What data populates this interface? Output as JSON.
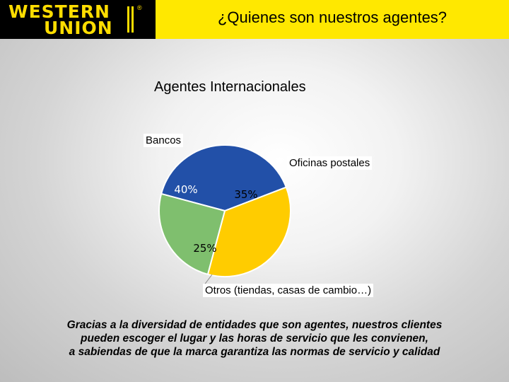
{
  "header": {
    "logo_line1": "WESTERN",
    "logo_line2": "UNION",
    "logo_reg": "®",
    "title": "¿Quienes son nuestros agentes?"
  },
  "colors": {
    "header_bg": "#ffe800",
    "logo_bg": "#000000",
    "logo_text": "#ffdd00",
    "bancos": "#2250a8",
    "oficinas": "#ffcc00",
    "otros": "#7fbf6e"
  },
  "chart_data": {
    "type": "pie",
    "title": "Agentes Internacionales",
    "slices": [
      {
        "label": "Bancos",
        "value": 40,
        "value_label": "40%"
      },
      {
        "label": "Oficinas postales",
        "value": 35,
        "value_label": "35%"
      },
      {
        "label": "Otros (tiendas, casas de cambio…)",
        "value": 25,
        "value_label": "25%"
      }
    ]
  },
  "footnote": {
    "line1": "Gracias a la diversidad de entidades que son agentes, nuestros clientes",
    "line2": "pueden escoger el lugar y las horas de servicio que les convienen,",
    "line3": "a sabiendas de que la marca garantiza las normas de servicio y calidad"
  }
}
